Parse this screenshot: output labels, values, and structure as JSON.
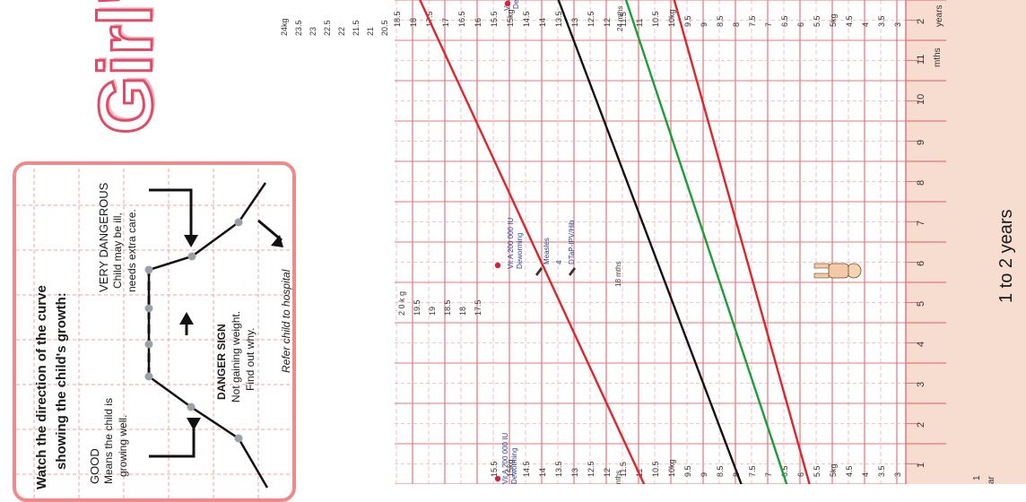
{
  "title": "Girl's",
  "info_box": {
    "heading_line1": "Watch the direction of the curve",
    "heading_line2": "showing the child's growth:",
    "good_title": "GOOD",
    "good_line1": "Means the child is",
    "good_line2": "growing well.",
    "danger_title": "DANGER SIGN",
    "danger_line1": "Not gaining weight.",
    "danger_line2": "Find out why.",
    "very_title": "VERY DANGEROUS",
    "very_line1": "Child may be ill,",
    "very_line2": "needs extra care.",
    "refer": "Refer child to hospital"
  },
  "age_band": {
    "label": "1 to 2 years",
    "months": [
      "1",
      "2",
      "3",
      "4",
      "5",
      "6",
      "7",
      "8",
      "9",
      "10",
      "11",
      "2"
    ],
    "mths_word": "mths",
    "years_word": "years",
    "partial_left": "ar",
    "partial_left_2": "1"
  },
  "annotations": {
    "vit_a": "Vit A 200 000 IU",
    "deworming": "Deworming",
    "measles": "Measles",
    "dtp": "DTaP-IPV/Hib",
    "dose_num": "4",
    "m18": "18 mths",
    "m24": "24 mths",
    "vit_a_partial": "Vit A",
    "dew_partial": "De",
    "mths_partial": "nths"
  },
  "chart_data": {
    "type": "line",
    "title": "",
    "xlabel": "",
    "ylabel": "",
    "x_unit": "months",
    "x_range": [
      12,
      24
    ],
    "y_unit": "kg",
    "ylim": [
      2.5,
      20.5
    ],
    "y_tick_labels_main": [
      "3",
      "3.5",
      "4",
      "4.5",
      "5kg",
      "5.5",
      "6",
      "6.5",
      "7",
      "7.5",
      "8",
      "8.5",
      "9",
      "9.5",
      "10kg",
      "10.5",
      "11",
      "11.5",
      "12",
      "12.5",
      "13",
      "13.5",
      "14",
      "14.5",
      "15kg",
      "15.5",
      "16",
      "16.5",
      "17",
      "17.5",
      "18",
      "18.5",
      "19",
      "19.5",
      "2 0 k g"
    ],
    "y_tick_labels_left": [
      "3",
      "3.5",
      "4",
      "4.5",
      "5kg",
      "5.5",
      "6",
      "6.5",
      "7",
      "7.5",
      "8",
      "8.5",
      "9",
      "9.5",
      "10kg",
      "10.5",
      "11",
      "11.5",
      "12",
      "12.5",
      "13",
      "13.5",
      "14",
      "14.5",
      "15kg",
      "15.5"
    ],
    "y_tick_labels_mid": [
      "17.5",
      "18",
      "18.5",
      "19",
      "19.5",
      "2 0 k g"
    ],
    "y_tick_labels_top": [
      "20.5",
      "21",
      "21.5",
      "22",
      "22.5",
      "23",
      "23.5",
      "24kg"
    ],
    "series": [
      {
        "color": "#e0242b",
        "values_start": 11.6,
        "values_end": 17.0
      },
      {
        "color": "#111111",
        "values_start": 8.6,
        "values_end": 12.7
      },
      {
        "color": "#1a9e3a",
        "values_start": 7.2,
        "values_end": 10.6
      },
      {
        "color": "#e0242b",
        "values_start": 6.5,
        "values_end": 9.1
      }
    ],
    "colors": {
      "grid": "#e8747c",
      "grid_minor": "#f2b0b6",
      "age_band": "#f7dcd0"
    }
  }
}
